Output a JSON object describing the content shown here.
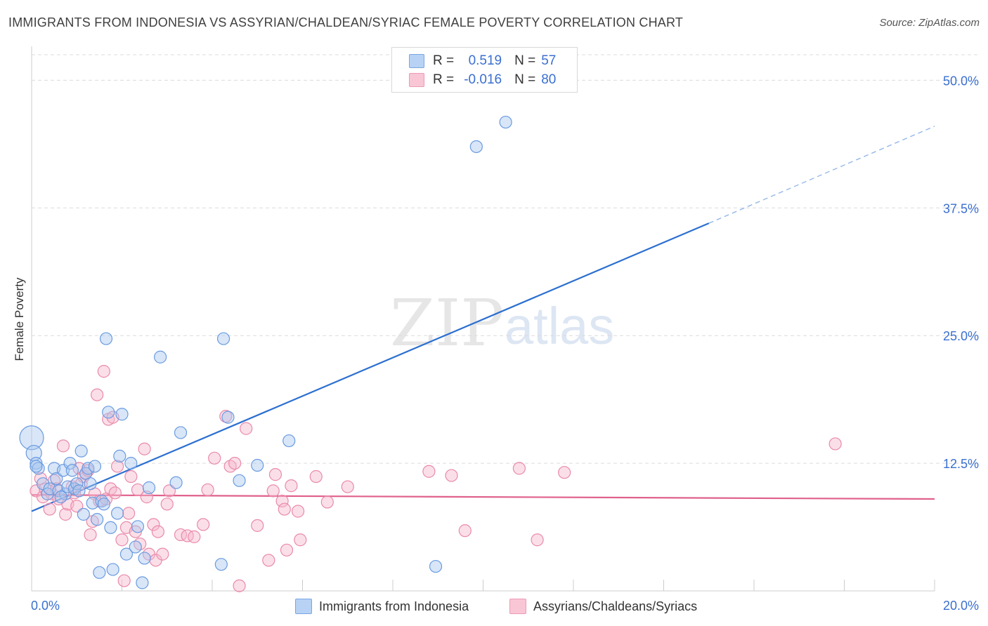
{
  "title": "IMMIGRANTS FROM INDONESIA VS ASSYRIAN/CHALDEAN/SYRIAC FEMALE POVERTY CORRELATION CHART",
  "source": "Source: ZipAtlas.com",
  "watermark": {
    "zip": "ZIP",
    "atlas": "atlas"
  },
  "legend": {
    "r_label": "R =",
    "n_label": "N =",
    "series1": {
      "r": "0.519",
      "n": "57"
    },
    "series2": {
      "r": "-0.016",
      "n": "80"
    }
  },
  "colors": {
    "blue_fill": "#a9c8f0",
    "blue_stroke": "#6b9be0",
    "blue_line": "#2b6fd0",
    "pink_fill": "#f6b8cc",
    "pink_stroke": "#e98aaa",
    "pink_line": "#e0618c",
    "axis_text": "#3a6fd0",
    "grid": "#dcdcdc"
  },
  "chart_data": {
    "type": "scatter",
    "title": "IMMIGRANTS FROM INDONESIA VS ASSYRIAN/CHALDEAN/SYRIAC FEMALE POVERTY CORRELATION CHART",
    "xlabel": "",
    "ylabel": "Female Poverty",
    "xlim": [
      0,
      20
    ],
    "ylim": [
      0,
      52.5
    ],
    "x_tick_labels": [
      "0.0%",
      "20.0%"
    ],
    "y_ticks": [
      12.5,
      25.0,
      37.5,
      50.0
    ],
    "y_tick_labels": [
      "12.5%",
      "25.0%",
      "37.5%",
      "50.0%"
    ],
    "series": [
      {
        "name": "Immigrants from Indonesia",
        "color": "#a9c8f0",
        "trend": {
          "x0": 0,
          "y0": 7.8,
          "x1": 15.0,
          "y1": 36.0,
          "dash_to_x": 20.0,
          "dash_to_y": 45.5
        },
        "points": [
          [
            0.0,
            15.0
          ],
          [
            0.05,
            13.5
          ],
          [
            0.1,
            12.5
          ],
          [
            0.15,
            12.0
          ],
          [
            0.25,
            10.5
          ],
          [
            0.35,
            9.5
          ],
          [
            0.4,
            10.0
          ],
          [
            0.5,
            12.0
          ],
          [
            0.55,
            11.0
          ],
          [
            0.6,
            9.8
          ],
          [
            0.7,
            11.8
          ],
          [
            0.75,
            9.5
          ],
          [
            0.8,
            10.2
          ],
          [
            0.85,
            12.5
          ],
          [
            0.9,
            11.8
          ],
          [
            0.95,
            10.0
          ],
          [
            1.0,
            10.5
          ],
          [
            1.05,
            9.8
          ],
          [
            1.1,
            13.7
          ],
          [
            1.15,
            7.5
          ],
          [
            1.2,
            11.5
          ],
          [
            1.25,
            12.0
          ],
          [
            1.3,
            10.5
          ],
          [
            1.35,
            8.6
          ],
          [
            1.4,
            12.2
          ],
          [
            1.45,
            7.0
          ],
          [
            1.5,
            1.8
          ],
          [
            1.55,
            8.8
          ],
          [
            1.6,
            8.5
          ],
          [
            1.65,
            24.7
          ],
          [
            1.7,
            17.5
          ],
          [
            1.75,
            6.2
          ],
          [
            1.8,
            2.1
          ],
          [
            1.9,
            7.6
          ],
          [
            1.95,
            13.2
          ],
          [
            2.0,
            17.3
          ],
          [
            2.1,
            3.6
          ],
          [
            2.2,
            12.5
          ],
          [
            2.3,
            4.3
          ],
          [
            2.35,
            6.3
          ],
          [
            2.45,
            0.8
          ],
          [
            2.5,
            3.2
          ],
          [
            2.6,
            10.1
          ],
          [
            2.85,
            22.9
          ],
          [
            3.3,
            15.5
          ],
          [
            3.2,
            10.6
          ],
          [
            4.2,
            2.6
          ],
          [
            4.25,
            24.7
          ],
          [
            4.35,
            17.0
          ],
          [
            4.6,
            10.8
          ],
          [
            5.0,
            12.3
          ],
          [
            5.7,
            14.7
          ],
          [
            8.95,
            2.4
          ],
          [
            9.85,
            43.5
          ],
          [
            10.5,
            45.9
          ],
          [
            0.1,
            12.2
          ],
          [
            0.65,
            9.2
          ]
        ]
      },
      {
        "name": "Assyrians/Chaldeans/Syriacs",
        "color": "#f6b8cc",
        "trend": {
          "x0": 0,
          "y0": 9.4,
          "x1": 20.0,
          "y1": 9.0
        },
        "points": [
          [
            0.1,
            9.8
          ],
          [
            0.2,
            11.0
          ],
          [
            0.25,
            9.2
          ],
          [
            0.3,
            10.0
          ],
          [
            0.4,
            8.0
          ],
          [
            0.45,
            9.5
          ],
          [
            0.5,
            10.8
          ],
          [
            0.6,
            9.0
          ],
          [
            0.7,
            14.2
          ],
          [
            0.75,
            7.5
          ],
          [
            0.8,
            8.5
          ],
          [
            0.9,
            10.2
          ],
          [
            0.95,
            9.6
          ],
          [
            1.0,
            8.3
          ],
          [
            1.05,
            12.0
          ],
          [
            1.1,
            10.5
          ],
          [
            1.15,
            11.2
          ],
          [
            1.2,
            11.5
          ],
          [
            1.3,
            5.5
          ],
          [
            1.35,
            6.8
          ],
          [
            1.4,
            9.5
          ],
          [
            1.45,
            19.2
          ],
          [
            1.5,
            8.8
          ],
          [
            1.6,
            21.5
          ],
          [
            1.65,
            9.0
          ],
          [
            1.7,
            16.8
          ],
          [
            1.75,
            10.0
          ],
          [
            1.8,
            17.0
          ],
          [
            1.85,
            9.6
          ],
          [
            1.9,
            12.2
          ],
          [
            2.0,
            5.0
          ],
          [
            2.05,
            1.0
          ],
          [
            2.1,
            6.2
          ],
          [
            2.15,
            7.6
          ],
          [
            2.2,
            11.2
          ],
          [
            2.3,
            5.8
          ],
          [
            2.4,
            4.6
          ],
          [
            2.5,
            13.9
          ],
          [
            2.55,
            9.2
          ],
          [
            2.6,
            3.6
          ],
          [
            2.7,
            6.5
          ],
          [
            2.75,
            3.0
          ],
          [
            2.8,
            5.8
          ],
          [
            2.9,
            3.6
          ],
          [
            3.0,
            8.5
          ],
          [
            3.05,
            9.8
          ],
          [
            3.3,
            5.5
          ],
          [
            3.45,
            5.4
          ],
          [
            3.6,
            5.3
          ],
          [
            3.8,
            6.5
          ],
          [
            3.9,
            9.9
          ],
          [
            4.05,
            13.0
          ],
          [
            4.3,
            17.1
          ],
          [
            4.4,
            12.2
          ],
          [
            4.5,
            12.5
          ],
          [
            4.6,
            0.5
          ],
          [
            4.75,
            15.9
          ],
          [
            5.0,
            6.4
          ],
          [
            5.25,
            3.0
          ],
          [
            5.35,
            9.8
          ],
          [
            5.4,
            11.4
          ],
          [
            5.55,
            8.8
          ],
          [
            5.6,
            8.0
          ],
          [
            5.65,
            4.0
          ],
          [
            5.75,
            10.3
          ],
          [
            5.9,
            7.8
          ],
          [
            5.95,
            5.0
          ],
          [
            6.3,
            11.2
          ],
          [
            6.55,
            8.7
          ],
          [
            7.0,
            10.2
          ],
          [
            8.8,
            11.7
          ],
          [
            9.3,
            11.3
          ],
          [
            9.6,
            5.9
          ],
          [
            10.8,
            12.0
          ],
          [
            11.2,
            5.0
          ],
          [
            11.8,
            11.6
          ],
          [
            17.8,
            14.4
          ],
          [
            1.25,
            11.8
          ],
          [
            0.55,
            10.0
          ],
          [
            2.35,
            9.9
          ]
        ]
      }
    ]
  }
}
